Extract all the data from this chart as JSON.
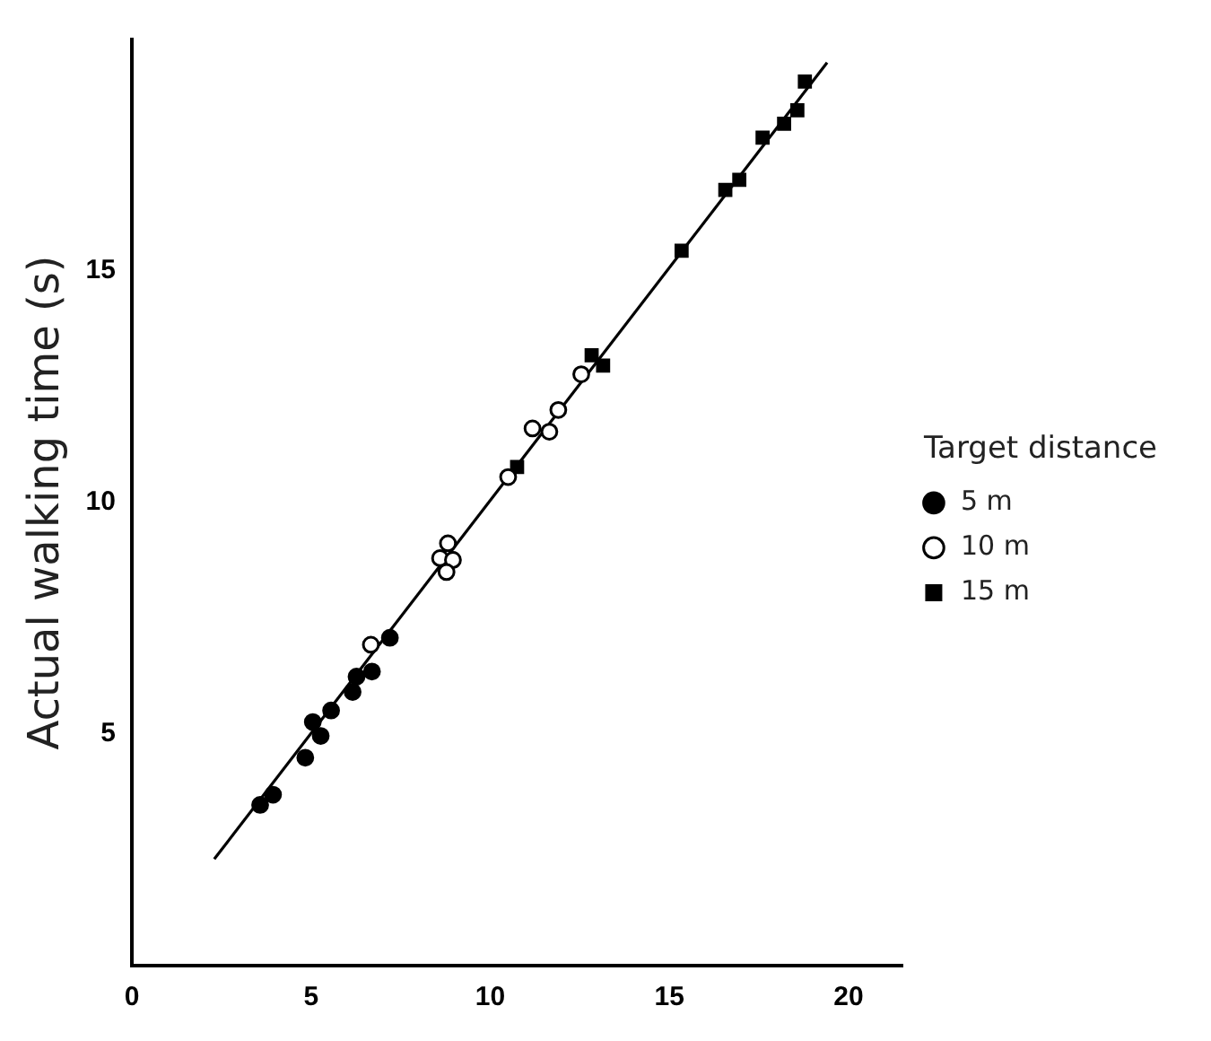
{
  "chart_data": {
    "type": "scatter",
    "ylabel": "Actual walking time (s)",
    "legend_title": "Target distance",
    "legend": "right",
    "grid": false,
    "xlim": [
      0,
      21.5
    ],
    "xticks": [
      0,
      5,
      10,
      15,
      20
    ],
    "ylim": [
      0,
      20
    ],
    "yticks": [
      5,
      10,
      15
    ],
    "series": [
      {
        "name": "5 m",
        "color": "#000000",
        "marker": "circle",
        "x": [
          3.58,
          3.94,
          4.84,
          5.05,
          5.27,
          5.56,
          6.16,
          6.27,
          6.7,
          7.2
        ],
        "values": [
          3.47,
          3.69,
          4.49,
          5.26,
          4.96,
          5.51,
          5.91,
          6.24,
          6.35,
          7.08
        ]
      },
      {
        "name": "10 m",
        "color": "#ffffff",
        "marker": "circle",
        "x": [
          6.67,
          8.82,
          8.6,
          8.96,
          8.78,
          10.5,
          11.18,
          11.65,
          11.9,
          12.54
        ],
        "values": [
          6.93,
          9.12,
          8.8,
          8.76,
          8.5,
          10.55,
          11.6,
          11.53,
          12.0,
          12.77
        ]
      },
      {
        "name": "15 m",
        "color": "#000000",
        "marker": "square",
        "x": [
          10.75,
          12.83,
          13.15,
          15.34,
          16.56,
          16.95,
          17.6,
          18.2,
          18.57,
          18.78
        ],
        "values": [
          10.77,
          13.18,
          12.96,
          15.44,
          16.75,
          16.97,
          17.88,
          18.18,
          18.47,
          19.09
        ]
      },
      {
        "type": "line",
        "color": "#000000",
        "marker": "none",
        "line_style": "solid",
        "x": [
          2.3,
          19.4
        ],
        "values": [
          2.3,
          19.5
        ]
      }
    ]
  }
}
